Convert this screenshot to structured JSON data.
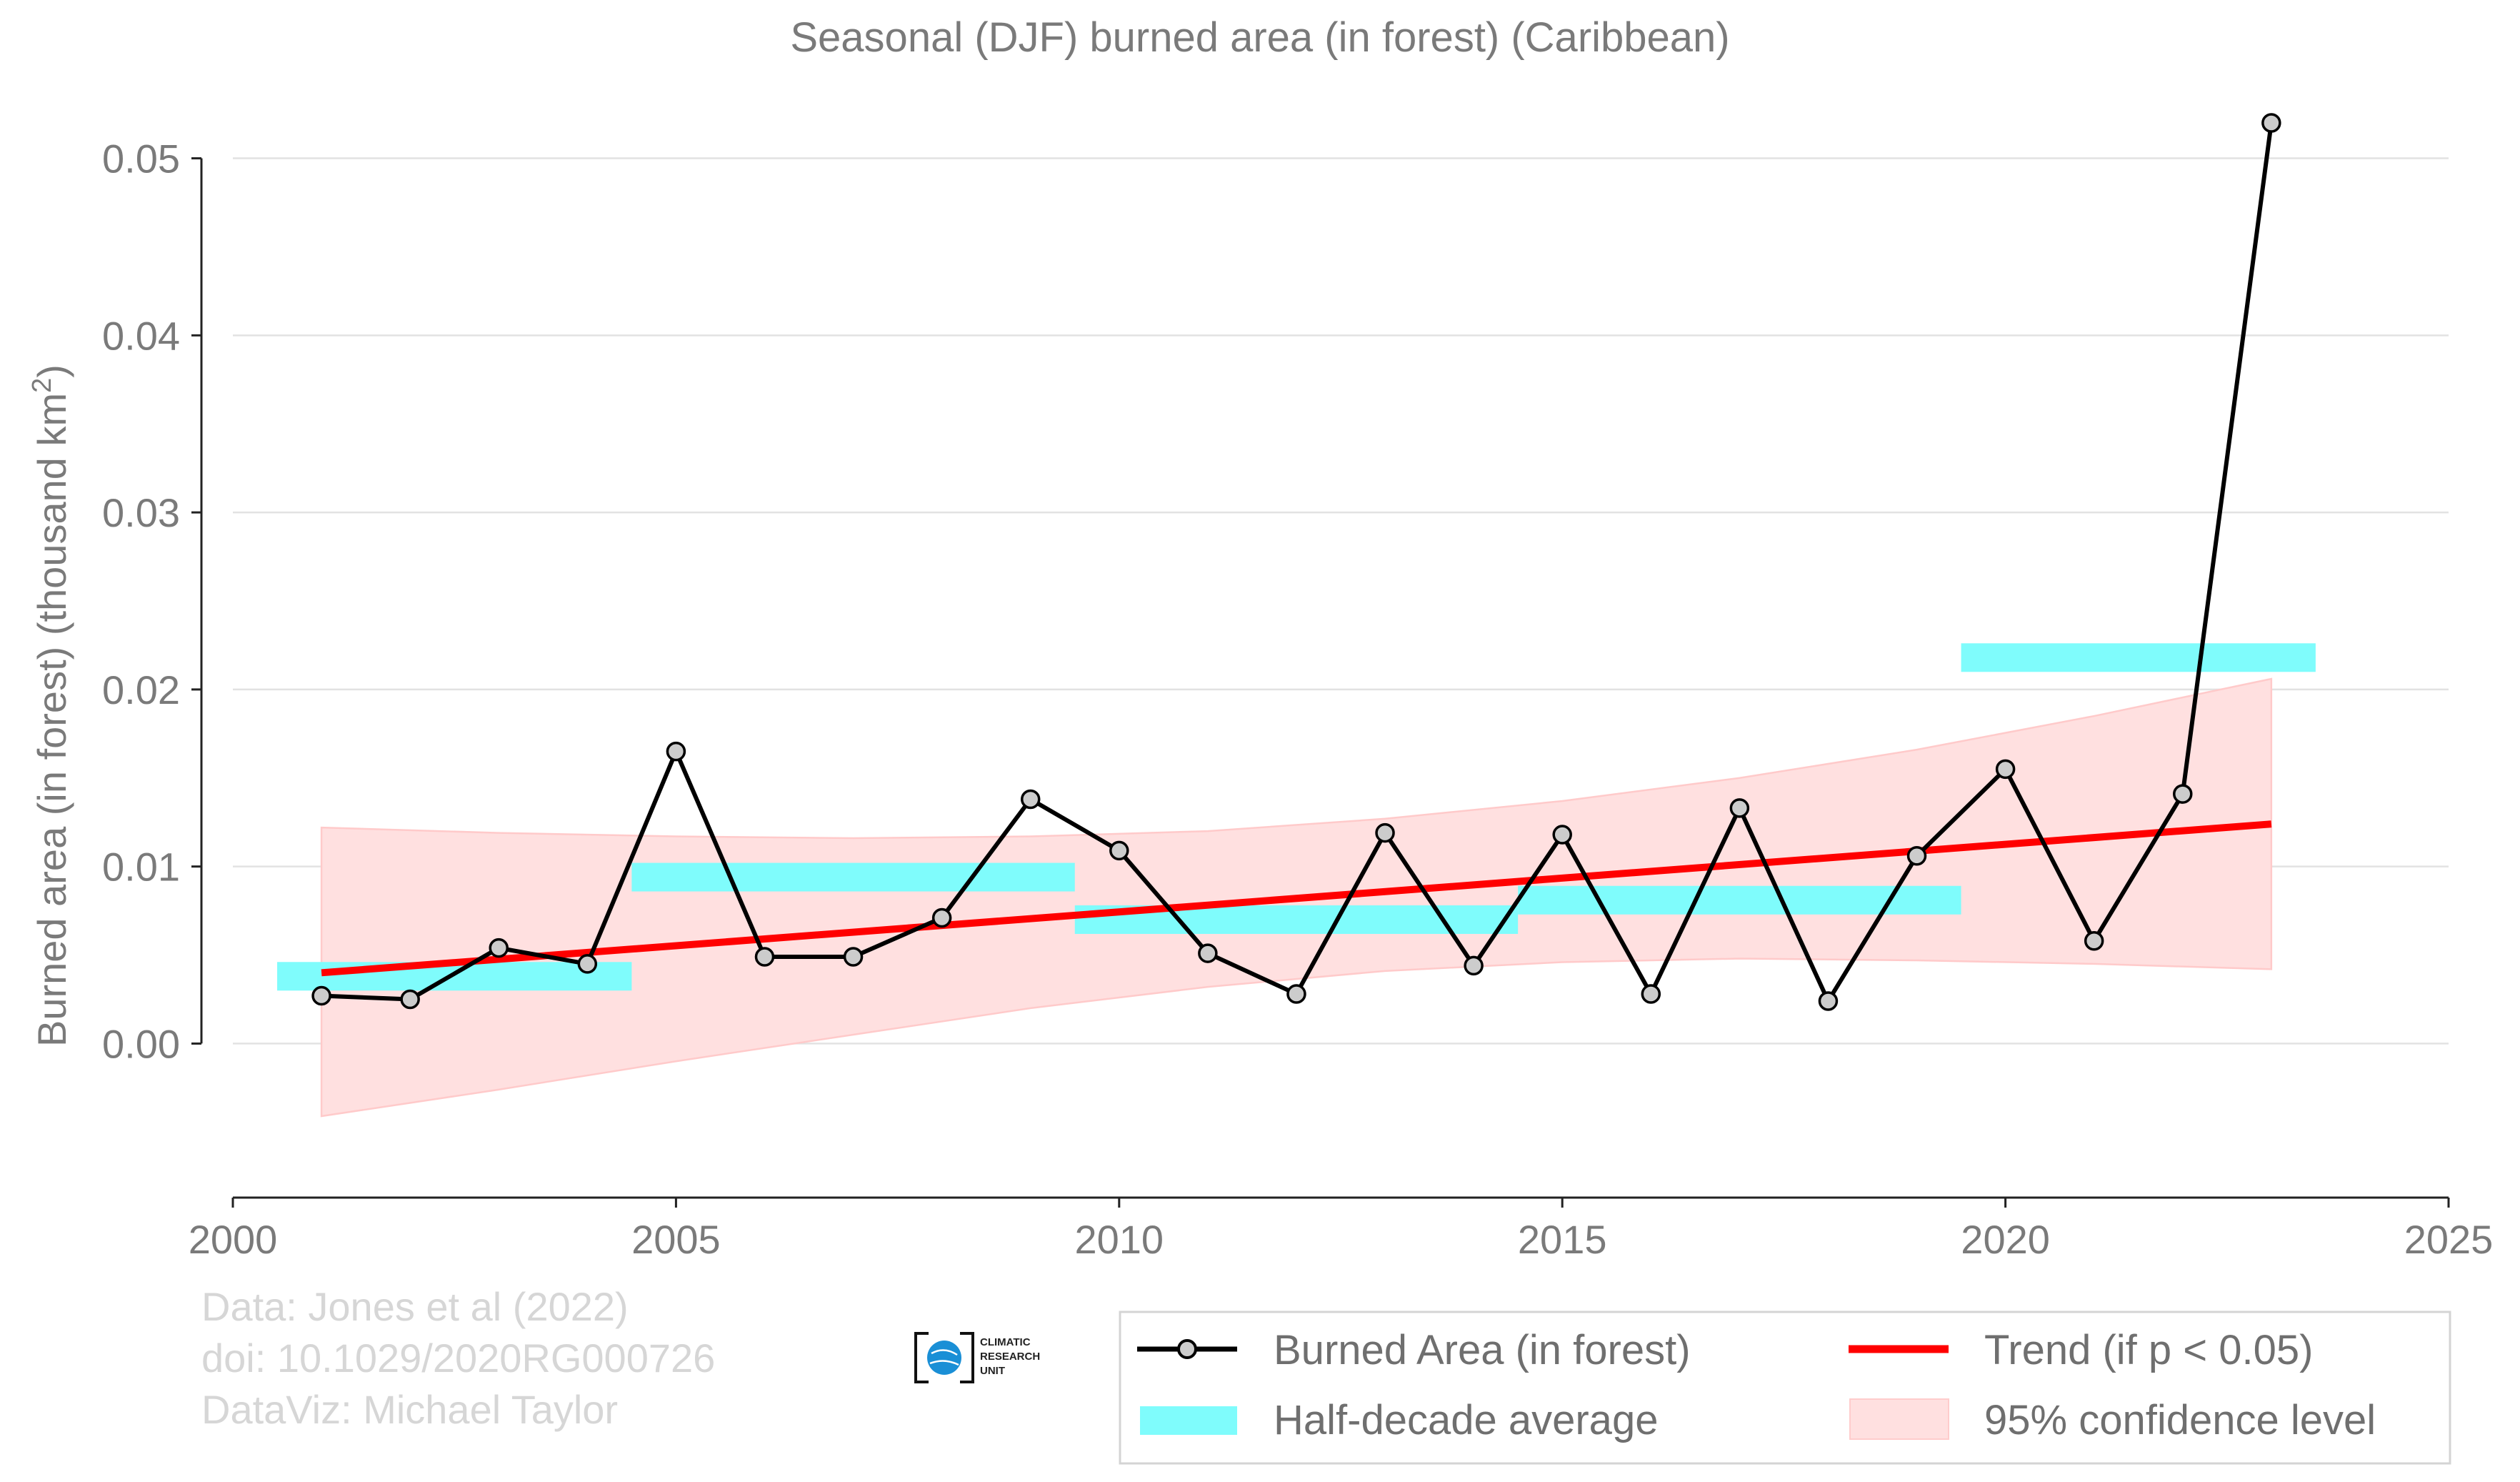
{
  "chart_data": {
    "type": "line",
    "title": "Seasonal (DJF) burned area (in forest) (Caribbean)",
    "ylabel": "Burned area (in forest) (thousand km",
    "ylabel_sup": "2",
    "ylabel_close": ")",
    "xlim": [
      2000,
      2025
    ],
    "ylim": [
      -0.0087,
      0.052
    ],
    "x_ticks": [
      2000,
      2005,
      2010,
      2015,
      2020,
      2025
    ],
    "y_ticks": [
      0.0,
      0.01,
      0.02,
      0.03,
      0.04,
      0.05
    ],
    "grid": "horizontal",
    "legend_position": "bottom-right",
    "series": [
      {
        "name": "Burned Area (in forest)",
        "type": "line",
        "color": "#000000",
        "marker_fill": "#cccccc",
        "x": [
          2001,
          2002,
          2003,
          2004,
          2005,
          2006,
          2007,
          2008,
          2009,
          2010,
          2011,
          2012,
          2013,
          2014,
          2015,
          2016,
          2017,
          2018,
          2019,
          2020,
          2021,
          2022,
          2023
        ],
        "y": [
          0.0027,
          0.0025,
          0.0054,
          0.0045,
          0.0165,
          0.0049,
          0.0049,
          0.0071,
          0.0138,
          0.0109,
          0.0051,
          0.0028,
          0.0119,
          0.0044,
          0.0118,
          0.0028,
          0.0133,
          0.0024,
          0.0106,
          0.0155,
          0.0058,
          0.0141,
          0.052
        ]
      },
      {
        "name": "Half-decade average",
        "type": "bars",
        "color": "#7ffcfc",
        "segments": [
          {
            "x0": 2000.5,
            "x1": 2004.5,
            "y": 0.0038
          },
          {
            "x0": 2004.5,
            "x1": 2009.5,
            "y": 0.0094
          },
          {
            "x0": 2009.5,
            "x1": 2014.5,
            "y": 0.007
          },
          {
            "x0": 2014.5,
            "x1": 2019.5,
            "y": 0.0081
          },
          {
            "x0": 2019.5,
            "x1": 2023.5,
            "y": 0.0218
          }
        ]
      },
      {
        "name": "Trend (if p < 0.05)",
        "type": "trend",
        "color": "#ff0000",
        "x": [
          2001,
          2023
        ],
        "y": [
          0.004,
          0.0124
        ]
      },
      {
        "name": "95% confidence level",
        "type": "band",
        "color": "#ffe0e0",
        "x": [
          2001,
          2003,
          2005,
          2007,
          2009,
          2011,
          2013,
          2015,
          2017,
          2019,
          2021,
          2023
        ],
        "upper": [
          0.0122,
          0.0119,
          0.0117,
          0.0116,
          0.0117,
          0.012,
          0.0127,
          0.0137,
          0.015,
          0.0166,
          0.0185,
          0.0206
        ],
        "lower": [
          -0.0041,
          -0.0026,
          -0.001,
          0.0005,
          0.002,
          0.0032,
          0.0041,
          0.0046,
          0.0048,
          0.0047,
          0.0045,
          0.0042
        ]
      }
    ]
  },
  "credits": {
    "line1": "Data: Jones et al (2022)",
    "line2": "doi: 10.1029/2020RG000726",
    "line3": "DataViz: Michael Taylor"
  },
  "logo": {
    "line1": "CLIMATIC",
    "line2": "RESEARCH",
    "line3": "UNIT"
  },
  "legend": {
    "burned": "Burned Area (in forest)",
    "trend": "Trend (if p < 0.05)",
    "halfdecade": "Half-decade average",
    "confidence": "95% confidence level"
  }
}
